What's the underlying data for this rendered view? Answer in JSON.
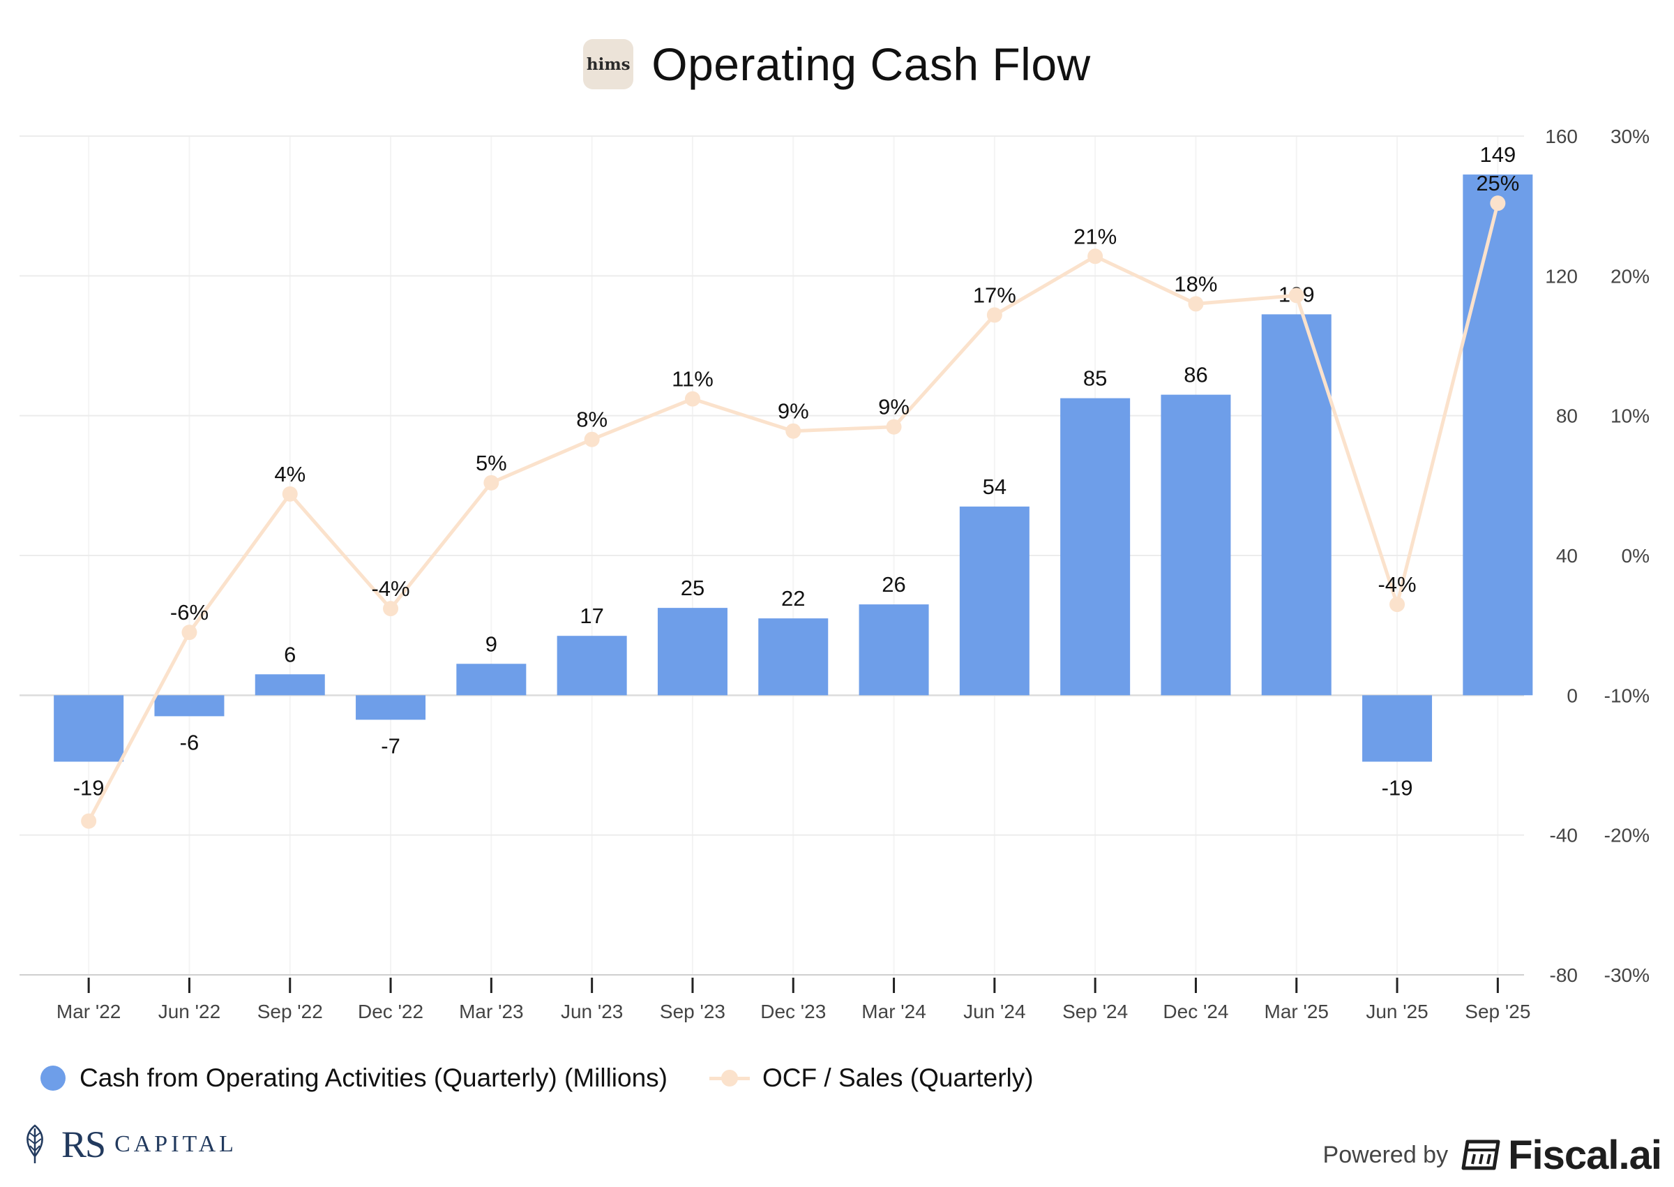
{
  "header": {
    "logo_text": "hims",
    "title": "Operating Cash Flow"
  },
  "legend": {
    "bar_series": "Cash from Operating Activities (Quarterly) (Millions)",
    "line_series": "OCF / Sales (Quarterly)"
  },
  "branding": {
    "left_monogram": "RS",
    "left_name": "CAPITAL",
    "powered_by": "Powered by",
    "provider": "Fiscal.ai"
  },
  "colors": {
    "bar": "#6e9ee9",
    "line": "#fbe2cc",
    "grid": "#ececec",
    "axis_text": "#444444"
  },
  "chart_data": {
    "type": "bar",
    "title": "Operating Cash Flow",
    "categories": [
      "Mar '22",
      "Jun '22",
      "Sep '22",
      "Dec '22",
      "Mar '23",
      "Jun '23",
      "Sep '23",
      "Dec '23",
      "Mar '24",
      "Jun '24",
      "Sep '24",
      "Dec '24",
      "Mar '25",
      "Jun '25",
      "Sep '25"
    ],
    "series": [
      {
        "name": "Cash from Operating Activities (Quarterly) (Millions)",
        "type": "bar",
        "axis": "left",
        "values": [
          -19,
          -6,
          6,
          -7,
          9,
          17,
          25,
          22,
          26,
          54,
          85,
          86,
          109,
          -19,
          149
        ],
        "labels": [
          "-19",
          "-6",
          "6",
          "-7",
          "9",
          "17",
          "25",
          "22",
          "26",
          "54",
          "85",
          "86",
          "109",
          "-19",
          "149"
        ]
      },
      {
        "name": "OCF / Sales (Quarterly)",
        "type": "line",
        "axis": "right",
        "values": [
          -19.0,
          -5.5,
          4.4,
          -3.8,
          5.2,
          8.3,
          11.2,
          8.9,
          9.2,
          17.2,
          21.4,
          18.0,
          18.6,
          -3.5,
          25.2
        ],
        "labels": [
          "",
          "-6%",
          "4%",
          "-4%",
          "5%",
          "8%",
          "11%",
          "9%",
          "9%",
          "17%",
          "21%",
          "18%",
          "",
          "-4%",
          "25%"
        ]
      }
    ],
    "y_left": {
      "range": [
        -80,
        160
      ],
      "ticks": [
        -80,
        -40,
        0,
        40,
        80,
        120,
        160
      ],
      "tick_labels": [
        "-80",
        "-40",
        "0",
        "40",
        "80",
        "120",
        "160"
      ]
    },
    "y_right": {
      "range": [
        -30,
        30
      ],
      "ticks": [
        -30,
        -20,
        -10,
        0,
        10,
        20,
        30
      ],
      "tick_labels": [
        "-30%",
        "-20%",
        "-10%",
        "0%",
        "10%",
        "20%",
        "30%"
      ]
    },
    "grid": true,
    "legend_position": "bottom-left"
  }
}
